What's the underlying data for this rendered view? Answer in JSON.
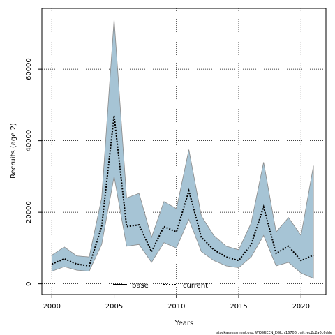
{
  "chart_data": {
    "type": "area",
    "xlabel": "Years",
    "ylabel": "Recruits (age 2)",
    "xlim": [
      1999.2,
      2022.0
    ],
    "ylim": [
      -3000,
      77000
    ],
    "xticks": [
      2000,
      2005,
      2010,
      2015,
      2020
    ],
    "yticks": [
      0,
      20000,
      40000,
      60000
    ],
    "grid": true,
    "legend_position": "bottom-center",
    "x": [
      2000,
      2001,
      2002,
      2003,
      2004,
      2005,
      2006,
      2007,
      2008,
      2009,
      2010,
      2011,
      2012,
      2013,
      2014,
      2015,
      2016,
      2017,
      2018,
      2019,
      2020,
      2021
    ],
    "series": [
      {
        "name": "current",
        "line_style": "dotted",
        "values": [
          5500,
          7000,
          5500,
          5000,
          16000,
          47000,
          16000,
          16500,
          9000,
          16000,
          14500,
          26000,
          13000,
          9500,
          7500,
          6500,
          11000,
          21500,
          8500,
          10500,
          6500,
          8000
        ]
      },
      {
        "name": "current-upper",
        "values": [
          8000,
          10300,
          7800,
          7500,
          24000,
          74000,
          24000,
          25300,
          13000,
          23000,
          21000,
          37500,
          19000,
          13500,
          10500,
          9500,
          17000,
          34000,
          14500,
          18500,
          13500,
          33000
        ]
      },
      {
        "name": "current-lower",
        "values": [
          3500,
          4800,
          3800,
          3500,
          11000,
          30000,
          10500,
          11000,
          6000,
          11500,
          10000,
          18000,
          9000,
          6500,
          5000,
          4500,
          7500,
          13500,
          5000,
          6000,
          3000,
          1500
        ]
      }
    ],
    "legend": [
      "base",
      "current"
    ],
    "colors": {
      "band_fill": "#a6c4d5",
      "band_edge": "#8a8a8a",
      "line": "#000000"
    },
    "footer": "stockassessment.org, WKGREEN_EGL, r16706 , git: ec2c2a0c6dde"
  }
}
